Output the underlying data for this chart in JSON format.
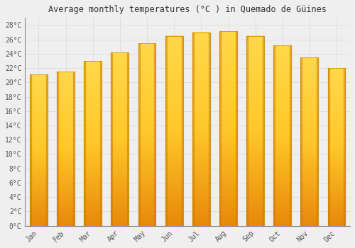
{
  "title": "Average monthly temperatures (°C ) in Quemado de Güines",
  "months": [
    "Jan",
    "Feb",
    "Mar",
    "Apr",
    "May",
    "Jun",
    "Jul",
    "Aug",
    "Sep",
    "Oct",
    "Nov",
    "Dec"
  ],
  "values": [
    21.1,
    21.5,
    23.0,
    24.2,
    25.5,
    26.5,
    27.0,
    27.1,
    26.5,
    25.2,
    23.5,
    22.0
  ],
  "bar_color_mid": "#FFA500",
  "bar_color_light": "#FFD040",
  "background_color": "#EFEFEF",
  "grid_color": "#DDDDDD",
  "ytick_labels": [
    "0°C",
    "2°C",
    "4°C",
    "6°C",
    "8°C",
    "10°C",
    "12°C",
    "14°C",
    "16°C",
    "18°C",
    "20°C",
    "22°C",
    "24°C",
    "26°C",
    "28°C"
  ],
  "ytick_values": [
    0,
    2,
    4,
    6,
    8,
    10,
    12,
    14,
    16,
    18,
    20,
    22,
    24,
    26,
    28
  ],
  "ylim": [
    0,
    29
  ],
  "title_fontsize": 8.5,
  "tick_fontsize": 7,
  "figsize": [
    5.0,
    3.5
  ],
  "dpi": 100
}
